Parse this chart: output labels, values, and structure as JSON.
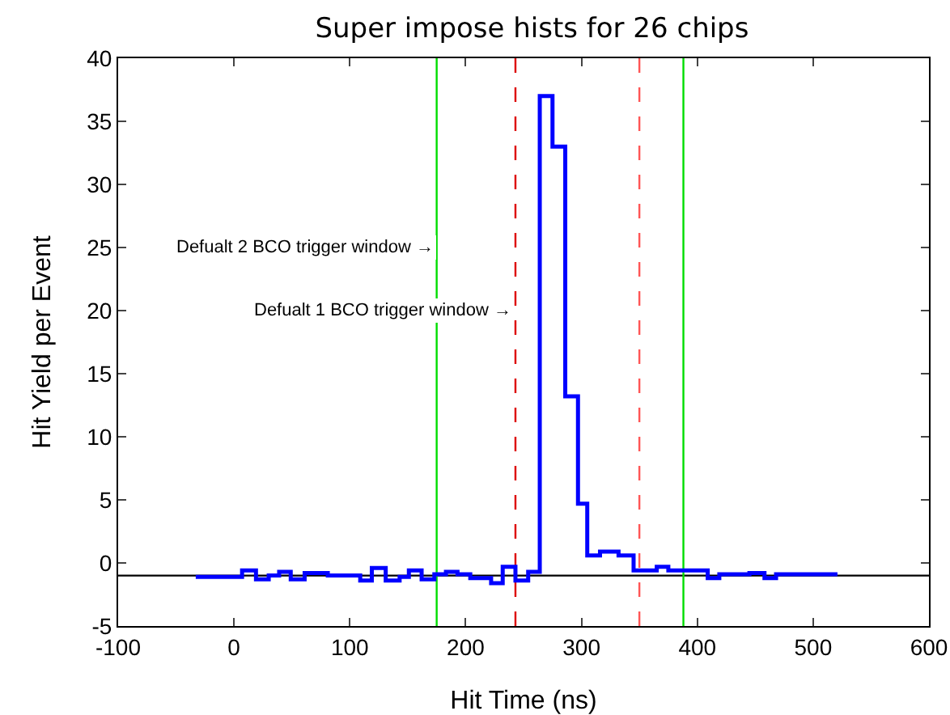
{
  "chart_data": {
    "type": "histogram",
    "title": "Super impose hists for 26 chips",
    "xlabel": "Hit Time (ns)",
    "ylabel": "Hit Yield per Event",
    "bins": [
      -33,
      7,
      19,
      30,
      39,
      49,
      61,
      81,
      109,
      119,
      131,
      143,
      151,
      162,
      173,
      183,
      193,
      204,
      222,
      232,
      243,
      254,
      264,
      275,
      286,
      297,
      305,
      316,
      332,
      345,
      365,
      375,
      409,
      419,
      445,
      458,
      468,
      521
    ],
    "values": [
      -1.1,
      -0.6,
      -1.3,
      -1.0,
      -0.7,
      -1.3,
      -0.8,
      -1.0,
      -1.4,
      -0.4,
      -1.4,
      -1.1,
      -0.6,
      -1.3,
      -0.9,
      -0.7,
      -0.9,
      -1.2,
      -1.6,
      -0.3,
      -1.4,
      -0.7,
      37.0,
      33.0,
      13.2,
      4.7,
      0.6,
      0.9,
      0.6,
      -0.6,
      -0.3,
      -0.6,
      -1.2,
      -0.9,
      -0.8,
      -1.2,
      -0.9
    ],
    "color": "#0000ff",
    "xlim": [
      -100,
      600
    ],
    "xticks": [
      -100,
      0,
      100,
      200,
      300,
      400,
      500,
      600
    ],
    "ylim": [
      -5,
      40
    ],
    "yticks": [
      -5,
      0,
      5,
      10,
      15,
      20,
      25,
      30,
      35,
      40
    ],
    "grid": false,
    "ref_lines": [
      {
        "axis": "y",
        "value": -1,
        "color": "#000000",
        "line_style": "solid"
      },
      {
        "axis": "x",
        "value": 175,
        "color": "#00dd00",
        "line_style": "solid"
      },
      {
        "axis": "x",
        "value": 388,
        "color": "#00dd00",
        "line_style": "solid"
      },
      {
        "axis": "x",
        "value": 243,
        "color": "#dd0000",
        "line_style": "dashed"
      },
      {
        "axis": "x",
        "value": 350,
        "color": "#ff5555",
        "line_style": "dashed"
      }
    ],
    "annotations": [
      {
        "text": "Defualt 2 BCO trigger window →",
        "x": 175,
        "y": 25
      },
      {
        "text": "Defualt 1 BCO trigger window →",
        "x": 243,
        "y": 20
      }
    ]
  }
}
